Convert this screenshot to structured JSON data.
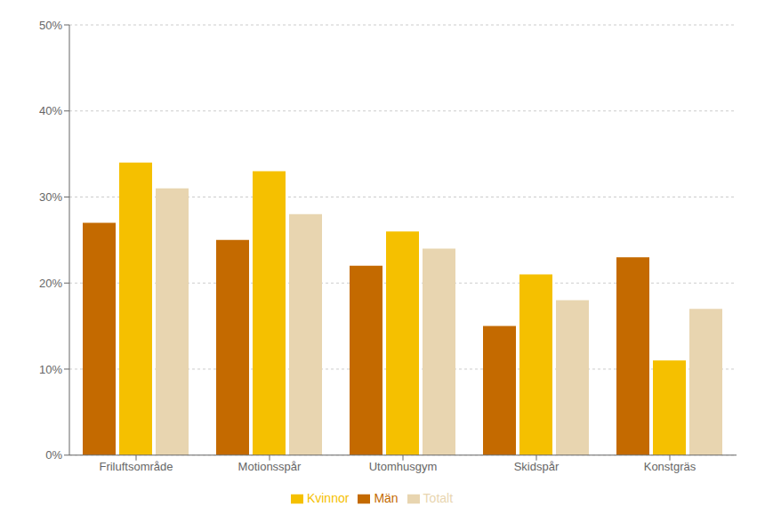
{
  "chart_data": {
    "type": "bar",
    "categories": [
      "Friluftsområde",
      "Motionsspår",
      "Utomhusgym",
      "Skidspår",
      "Konstgräs"
    ],
    "series": [
      {
        "name": "Män",
        "color": "#c46a00",
        "values": [
          27,
          25,
          22,
          15,
          23
        ]
      },
      {
        "name": "Kvinnor",
        "color": "#f5c000",
        "values": [
          34,
          33,
          26,
          21,
          11
        ]
      },
      {
        "name": "Totalt",
        "color": "#e8d5b0",
        "values": [
          31,
          28,
          24,
          18,
          17
        ]
      }
    ],
    "ylim": [
      0,
      50
    ],
    "yticks": [
      {
        "value": 0,
        "label": "0%"
      },
      {
        "value": 10,
        "label": "10%"
      },
      {
        "value": 20,
        "label": "20%"
      },
      {
        "value": 30,
        "label": "30%"
      },
      {
        "value": 40,
        "label": "40%"
      },
      {
        "value": 50,
        "label": "50%"
      }
    ],
    "grid": true,
    "legend": "bottom"
  }
}
